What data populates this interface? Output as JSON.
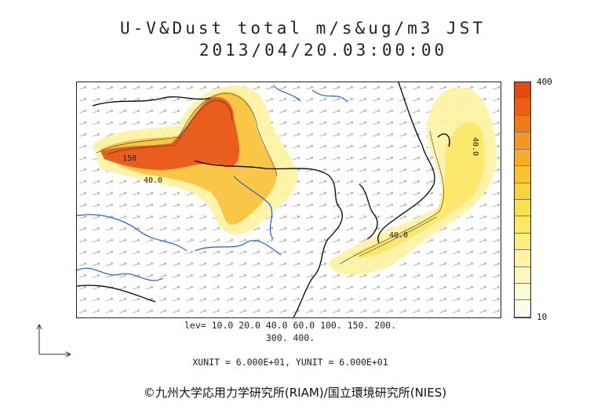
{
  "title_line1": "U-V&Dust total m/s&ug/m3 JST",
  "title_line2": "2013/04/20.03:00:00",
  "colorbar": {
    "max_label": "400",
    "min_label": "10",
    "colors": [
      "#e24a10",
      "#ea5f14",
      "#f07a18",
      "#f59522",
      "#f8ad2a",
      "#f9c233",
      "#fad23e",
      "#fbe04d",
      "#fce766",
      "#fdee82",
      "#fdf3a0",
      "#fef7bd",
      "#fefad6",
      "#fffde9"
    ]
  },
  "contour_labels": {
    "west_150": "150",
    "west_40": "40.0",
    "pacific_40": "40.0",
    "east_40": "40.0"
  },
  "levels": {
    "line1": "lev= 10.0 20.0 40.0 60.0 100. 150. 200.",
    "line2": "300. 400."
  },
  "units": "XUNIT = 6.000E+01, YUNIT = 6.000E+01",
  "credit": "©九州大学応用力学研究所(RIAM)/国立環境研究所(NIES)",
  "colors": {
    "dust_high": "#e24a10",
    "dust_mid": "#f8c23a",
    "dust_low": "#fdf3a0",
    "river": "#1f5fd8",
    "coast": "#000000"
  }
}
